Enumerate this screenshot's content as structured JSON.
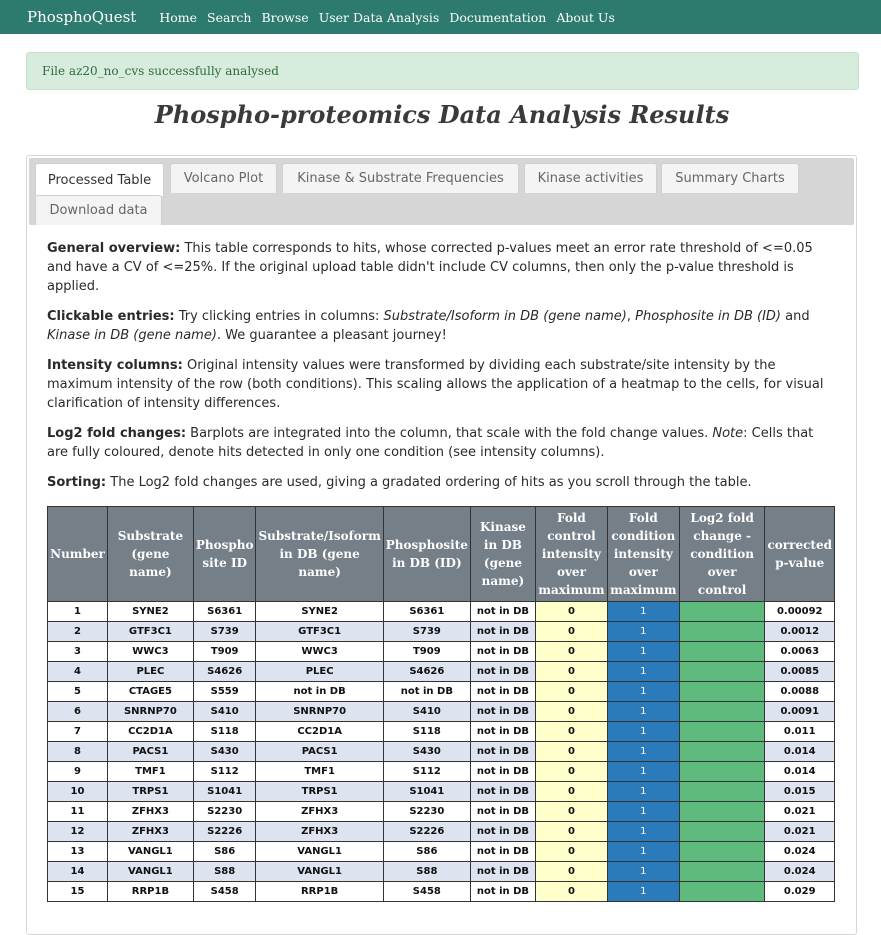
{
  "navbar": {
    "brand": "PhosphoQuest",
    "links": [
      "Home",
      "Search",
      "Browse",
      "User Data Analysis",
      "Documentation",
      "About Us"
    ]
  },
  "alert": {
    "message": "File az20_no_cvs successfully analysed"
  },
  "title": "Phospho-proteomics Data Analysis Results",
  "tabs": [
    "Processed Table",
    "Volcano Plot",
    "Kinase & Substrate Frequencies",
    "Kinase activities",
    "Summary Charts",
    "Download data"
  ],
  "paragraphs": {
    "overview_label": "General overview:",
    "overview_text": " This table corresponds to hits, whose corrected p-values meet an error rate threshold of <=0.05 and have a CV of <=25%. If the original upload table didn't include CV columns, then only the p-value threshold is applied.",
    "clickable_label": "Clickable entries:",
    "clickable_text_1": " Try clicking entries in columns: ",
    "clickable_col_1": "Substrate/Isoform in DB (gene name)",
    "clickable_sep_1": ", ",
    "clickable_col_2": "Phosphosite in DB (ID)",
    "clickable_sep_2": " and ",
    "clickable_col_3": "Kinase in DB (gene name)",
    "clickable_text_2": ". We guarantee a pleasant journey!",
    "intensity_label": "Intensity columns:",
    "intensity_text": " Original intensity values were transformed by dividing each substrate/site intensity by the maximum intensity of the row (both conditions). This scaling allows the application of a heatmap to the cells, for visual clarification of intensity differences.",
    "log2_label": "Log2 fold changes:",
    "log2_text_1": " Barplots are integrated into the column, that scale with the fold change values. ",
    "log2_note": "Note",
    "log2_text_2": ": Cells that are fully coloured, denote hits detected in only one condition (see intensity columns).",
    "sorting_label": "Sorting:",
    "sorting_text": " The Log2 fold changes are used, giving a gradated ordering of hits as you scroll through the table."
  },
  "table": {
    "headers": [
      "Number",
      "Substrate (gene name)",
      "Phospho site ID",
      "Substrate/Isoform in DB (gene name)",
      "Phosphosite in DB (ID)",
      "Kinase in DB (gene name)",
      "Fold control intensity over maximum",
      "Fold condition intensity over maximum",
      "Log2 fold change - condition over control",
      "corrected p-value"
    ],
    "rows": [
      [
        "1",
        "SYNE2",
        "S6361",
        "SYNE2",
        "S6361",
        "not in DB",
        "0",
        "1",
        "",
        "0.00092"
      ],
      [
        "2",
        "GTF3C1",
        "S739",
        "GTF3C1",
        "S739",
        "not in DB",
        "0",
        "1",
        "",
        "0.0012"
      ],
      [
        "3",
        "WWC3",
        "T909",
        "WWC3",
        "T909",
        "not in DB",
        "0",
        "1",
        "",
        "0.0063"
      ],
      [
        "4",
        "PLEC",
        "S4626",
        "PLEC",
        "S4626",
        "not in DB",
        "0",
        "1",
        "",
        "0.0085"
      ],
      [
        "5",
        "CTAGE5",
        "S559",
        "not in DB",
        "not in DB",
        "not in DB",
        "0",
        "1",
        "",
        "0.0088"
      ],
      [
        "6",
        "SNRNP70",
        "S410",
        "SNRNP70",
        "S410",
        "not in DB",
        "0",
        "1",
        "",
        "0.0091"
      ],
      [
        "7",
        "CC2D1A",
        "S118",
        "CC2D1A",
        "S118",
        "not in DB",
        "0",
        "1",
        "",
        "0.011"
      ],
      [
        "8",
        "PACS1",
        "S430",
        "PACS1",
        "S430",
        "not in DB",
        "0",
        "1",
        "",
        "0.014"
      ],
      [
        "9",
        "TMF1",
        "S112",
        "TMF1",
        "S112",
        "not in DB",
        "0",
        "1",
        "",
        "0.014"
      ],
      [
        "10",
        "TRPS1",
        "S1041",
        "TRPS1",
        "S1041",
        "not in DB",
        "0",
        "1",
        "",
        "0.015"
      ],
      [
        "11",
        "ZFHX3",
        "S2230",
        "ZFHX3",
        "S2230",
        "not in DB",
        "0",
        "1",
        "",
        "0.021"
      ],
      [
        "12",
        "ZFHX3",
        "S2226",
        "ZFHX3",
        "S2226",
        "not in DB",
        "0",
        "1",
        "",
        "0.021"
      ],
      [
        "13",
        "VANGL1",
        "S86",
        "VANGL1",
        "S86",
        "not in DB",
        "0",
        "1",
        "",
        "0.024"
      ],
      [
        "14",
        "VANGL1",
        "S88",
        "VANGL1",
        "S88",
        "not in DB",
        "0",
        "1",
        "",
        "0.024"
      ],
      [
        "15",
        "RRP1B",
        "S458",
        "RRP1B",
        "S458",
        "not in DB",
        "0",
        "1",
        "",
        "0.029"
      ]
    ]
  },
  "colors": {
    "navbar": "#2d7a6e",
    "alert_bg": "#d7ecdc",
    "header_bg": "#747f88",
    "row_even": "#dde3ef",
    "ctrl_cell": "#ffffcc",
    "cond_cell": "#2b7bba",
    "log2_bar": "#5fba7d"
  }
}
